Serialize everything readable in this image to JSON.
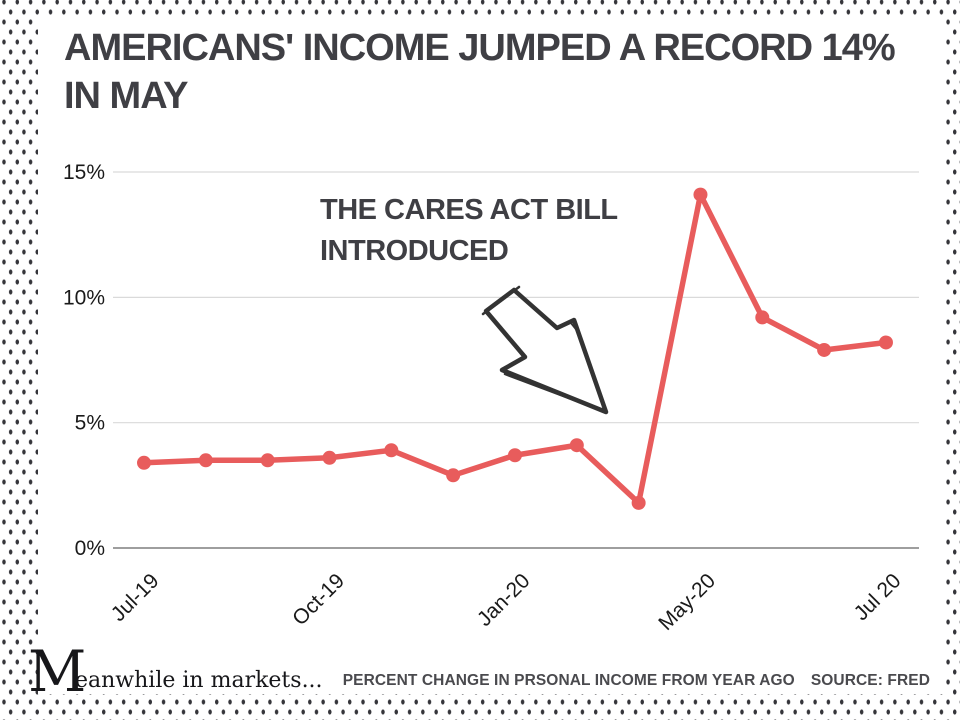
{
  "header": {
    "title_line1": "AMERICANS' INCOME JUMPED A RECORD 14%",
    "title_line2": "IN MAY"
  },
  "annotation": {
    "line1": "THE CARES ACT BILL",
    "line2": "INTRODUCED",
    "arrow_icon": "hand-drawn-arrow-down-right"
  },
  "footer": {
    "brand_initial": "M",
    "brand_rest": "eanwhile in markets...",
    "caption": "PERCENT CHANGE IN PRSONAL INCOME FROM YEAR AGO",
    "source": "SOURCE: FRED"
  },
  "colors": {
    "line": "#e85c5c",
    "title_text": "#3f3f44",
    "tick_text": "#1a1a1a",
    "grid": "#dadada",
    "zero_axis": "#9e9e9e",
    "arrow": "#333333"
  },
  "chart_data": {
    "type": "line",
    "title": "AMERICANS' INCOME JUMPED A RECORD 14% IN MAY",
    "xlabel": "",
    "ylabel": "",
    "ylim": [
      0,
      15.8
    ],
    "grid": "horizontal",
    "legend": "none",
    "series": [
      {
        "name": "Percent change in personal income from year ago",
        "color": "#e85c5c",
        "values": [
          3.4,
          3.5,
          3.5,
          3.6,
          3.9,
          2.9,
          3.7,
          4.1,
          1.8,
          14.1,
          9.2,
          7.9,
          8.2
        ]
      }
    ],
    "x_tick_labels": [
      {
        "label": "Jul-19",
        "index": 0
      },
      {
        "label": "Oct-19",
        "index": 3
      },
      {
        "label": "Jan-20",
        "index": 6
      },
      {
        "label": "May-20",
        "index": 9
      },
      {
        "label": "Jul 20",
        "index": 12
      }
    ],
    "y_ticks": [
      {
        "label": "0%",
        "value": 0
      },
      {
        "label": "5%",
        "value": 5
      },
      {
        "label": "10%",
        "value": 10
      },
      {
        "label": "15%",
        "value": 15
      }
    ]
  }
}
